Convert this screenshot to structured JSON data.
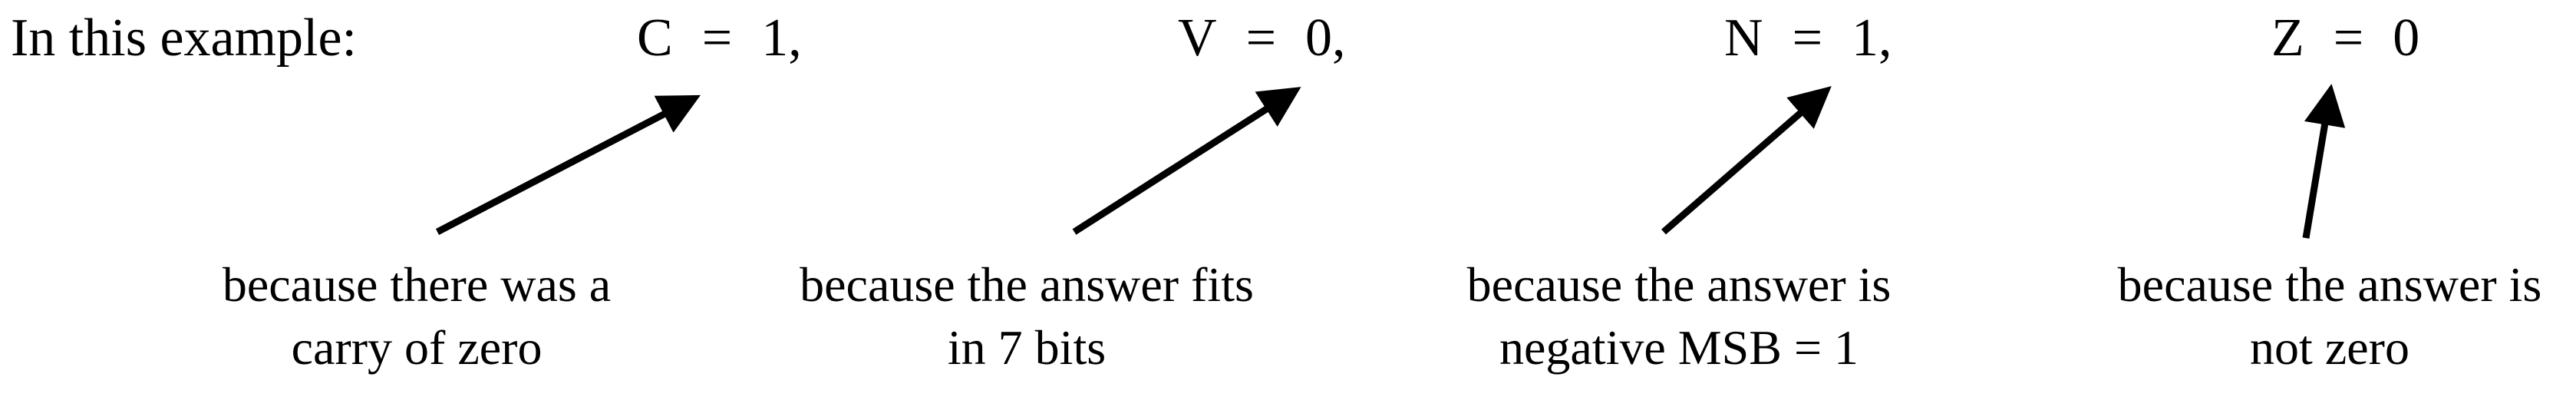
{
  "intro_text": "In this example:",
  "flags": [
    {
      "name": "C",
      "equals": "=",
      "value": "1",
      "sep": ","
    },
    {
      "name": "V",
      "equals": "=",
      "value": "0",
      "sep": ","
    },
    {
      "name": "N",
      "equals": "=",
      "value": "1",
      "sep": ","
    },
    {
      "name": "Z",
      "equals": "=",
      "value": "0",
      "sep": ""
    }
  ],
  "explanations": [
    {
      "line1": "because there was a",
      "line2": "carry of zero"
    },
    {
      "line1": "because the answer fits",
      "line2": "in 7 bits"
    },
    {
      "line1": "because the answer is",
      "line2": "negative MSB = 1"
    },
    {
      "line1": "because the answer is",
      "line2": "not zero"
    }
  ],
  "colors": {
    "text": "#000000",
    "arrow": "#000000",
    "background": "#ffffff"
  }
}
